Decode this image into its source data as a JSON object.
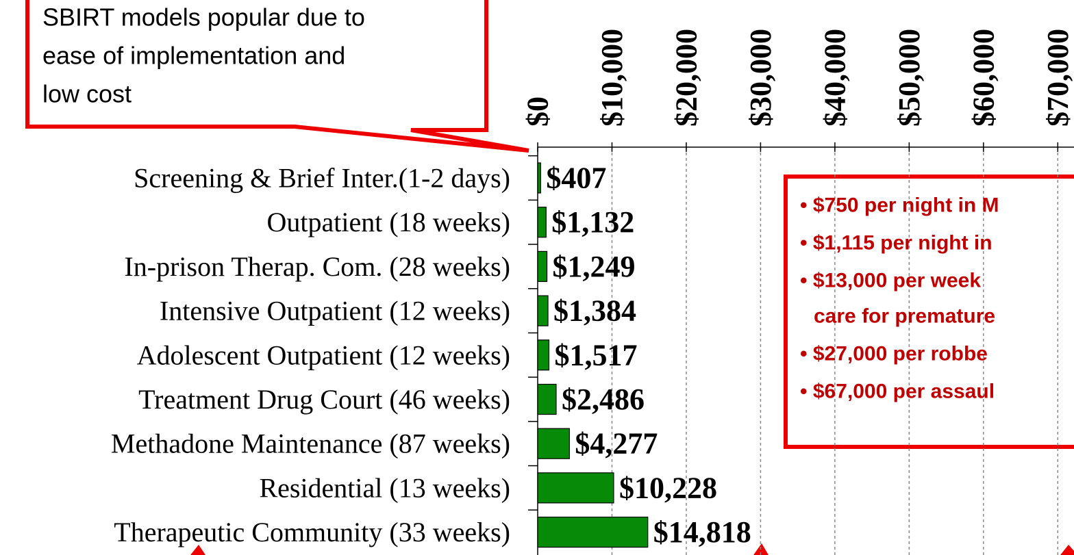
{
  "chart_data": {
    "type": "barh",
    "categories": [
      "Screening & Brief Inter.(1-2 days)",
      "Outpatient (18 weeks)",
      "In-prison Therap. Com. (28 weeks)",
      "Intensive Outpatient (12 weeks)",
      "Adolescent Outpatient (12 weeks)",
      "Treatment Drug Court (46 weeks)",
      "Methadone Maintenance (87 weeks)",
      "Residential (13 weeks)",
      "Therapeutic Community (33 weeks)"
    ],
    "values": [
      407,
      1132,
      1249,
      1384,
      1517,
      2486,
      4277,
      10228,
      14818
    ],
    "value_labels": [
      "$407",
      "$1,132",
      "$1,249",
      "$1,384",
      "$1,517",
      "$2,486",
      "$4,277",
      "$10,228",
      "$14,818"
    ],
    "color": "#078a07",
    "xlim": [
      0,
      72000
    ],
    "xticks": [
      {
        "value": 0,
        "label": "$0"
      },
      {
        "value": 10000,
        "label": "$10,000"
      },
      {
        "value": 20000,
        "label": "$20,000"
      },
      {
        "value": 30000,
        "label": "$30,000"
      },
      {
        "value": 40000,
        "label": "$40,000"
      },
      {
        "value": 50000,
        "label": "$50,000"
      },
      {
        "value": 60000,
        "label": "$60,000"
      },
      {
        "value": 70000,
        "label": "$70,000"
      }
    ],
    "grid": true
  },
  "callout": {
    "lines": [
      "SBIRT models popular due to",
      "ease of implementation and",
      "low cost"
    ]
  },
  "note_box": {
    "lines": [
      "• $750 per night in M",
      "• $1,115 per night in",
      "• $13,000 per week",
      "care for premature",
      "• $27,000 per robbe",
      "• $67,000 per assaul"
    ]
  }
}
